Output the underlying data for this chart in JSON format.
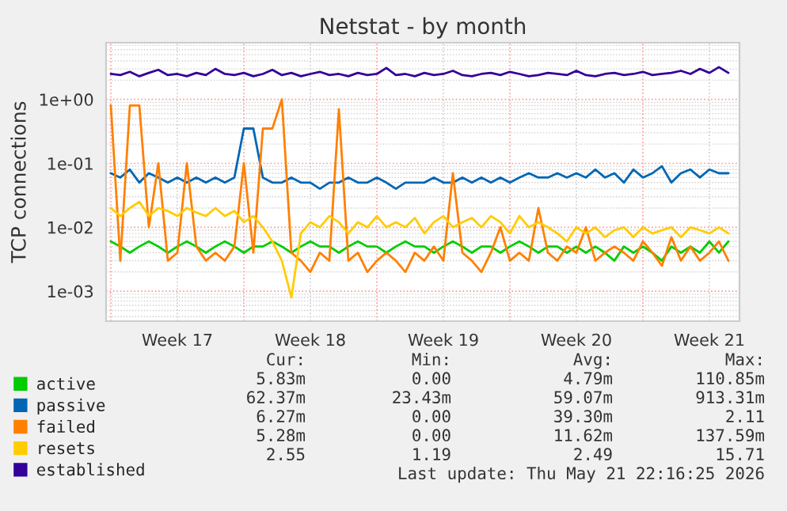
{
  "chart_data": {
    "type": "line",
    "title": "Netstat - by month",
    "ylabel": "TCP connections",
    "x": [
      "2026-04-20T00:00",
      "2026-04-20T12:00",
      "2026-04-21T00:00",
      "2026-04-21T12:00",
      "2026-04-22T00:00",
      "2026-04-22T12:00",
      "2026-04-23T00:00",
      "2026-04-23T12:00",
      "2026-04-24T00:00",
      "2026-04-24T12:00",
      "2026-04-25T00:00",
      "2026-04-25T12:00",
      "2026-04-26T00:00",
      "2026-04-26T12:00",
      "2026-04-27T00:00",
      "2026-04-27T12:00",
      "2026-04-28T00:00",
      "2026-04-28T12:00",
      "2026-04-29T00:00",
      "2026-04-29T12:00",
      "2026-04-30T00:00",
      "2026-04-30T12:00",
      "2026-05-01T00:00",
      "2026-05-01T12:00",
      "2026-05-02T00:00",
      "2026-05-02T12:00",
      "2026-05-03T00:00",
      "2026-05-03T12:00",
      "2026-05-04T00:00",
      "2026-05-04T12:00",
      "2026-05-05T00:00",
      "2026-05-05T12:00",
      "2026-05-06T00:00",
      "2026-05-06T12:00",
      "2026-05-07T00:00",
      "2026-05-07T12:00",
      "2026-05-08T00:00",
      "2026-05-08T12:00",
      "2026-05-09T00:00",
      "2026-05-09T12:00",
      "2026-05-10T00:00",
      "2026-05-10T12:00",
      "2026-05-11T00:00",
      "2026-05-11T12:00",
      "2026-05-12T00:00",
      "2026-05-12T12:00",
      "2026-05-13T00:00",
      "2026-05-13T12:00",
      "2026-05-14T00:00",
      "2026-05-14T12:00",
      "2026-05-15T00:00",
      "2026-05-15T12:00",
      "2026-05-16T00:00",
      "2026-05-16T12:00",
      "2026-05-17T00:00",
      "2026-05-17T12:00",
      "2026-05-18T00:00",
      "2026-05-18T12:00",
      "2026-05-19T00:00",
      "2026-05-19T12:00",
      "2026-05-20T00:00",
      "2026-05-20T12:00",
      "2026-05-21T00:00",
      "2026-05-21T12:00",
      "2026-05-22T00:00",
      "2026-05-22T12:00"
    ],
    "series": [
      {
        "name": "active",
        "color": "#00cc00",
        "values": [
          0.006,
          0.005,
          0.004,
          0.005,
          0.006,
          0.005,
          0.004,
          0.005,
          0.006,
          0.005,
          0.004,
          0.005,
          0.006,
          0.005,
          0.004,
          0.005,
          0.005,
          0.006,
          0.005,
          0.004,
          0.005,
          0.006,
          0.005,
          0.005,
          0.004,
          0.005,
          0.006,
          0.005,
          0.005,
          0.004,
          0.005,
          0.006,
          0.005,
          0.005,
          0.004,
          0.005,
          0.006,
          0.005,
          0.004,
          0.005,
          0.005,
          0.004,
          0.005,
          0.006,
          0.005,
          0.004,
          0.005,
          0.005,
          0.004,
          0.005,
          0.004,
          0.005,
          0.004,
          0.003,
          0.005,
          0.004,
          0.005,
          0.004,
          0.003,
          0.005,
          0.004,
          0.005,
          0.004,
          0.006,
          0.004,
          0.006
        ]
      },
      {
        "name": "passive",
        "color": "#0066b3",
        "values": [
          0.07,
          0.06,
          0.08,
          0.05,
          0.07,
          0.06,
          0.05,
          0.06,
          0.05,
          0.06,
          0.05,
          0.06,
          0.05,
          0.06,
          0.35,
          0.35,
          0.06,
          0.05,
          0.05,
          0.06,
          0.05,
          0.05,
          0.04,
          0.05,
          0.05,
          0.06,
          0.05,
          0.05,
          0.06,
          0.05,
          0.04,
          0.05,
          0.05,
          0.05,
          0.06,
          0.05,
          0.05,
          0.06,
          0.05,
          0.06,
          0.05,
          0.06,
          0.05,
          0.06,
          0.07,
          0.06,
          0.06,
          0.07,
          0.06,
          0.07,
          0.06,
          0.08,
          0.06,
          0.07,
          0.05,
          0.08,
          0.06,
          0.07,
          0.09,
          0.05,
          0.07,
          0.08,
          0.06,
          0.08,
          0.07,
          0.07
        ]
      },
      {
        "name": "failed",
        "color": "#ff8000",
        "values": [
          0.8,
          0.003,
          0.8,
          0.8,
          0.01,
          0.1,
          0.003,
          0.004,
          0.1,
          0.005,
          0.003,
          0.004,
          0.003,
          0.005,
          0.1,
          0.004,
          0.35,
          0.35,
          1.0,
          0.004,
          0.003,
          0.002,
          0.004,
          0.003,
          0.7,
          0.003,
          0.004,
          0.002,
          0.003,
          0.004,
          0.003,
          0.002,
          0.004,
          0.003,
          0.005,
          0.003,
          0.07,
          0.004,
          0.003,
          0.002,
          0.004,
          0.01,
          0.003,
          0.004,
          0.003,
          0.02,
          0.004,
          0.003,
          0.005,
          0.004,
          0.01,
          0.003,
          0.004,
          0.005,
          0.004,
          0.003,
          0.006,
          0.004,
          0.0025,
          0.007,
          0.003,
          0.005,
          0.003,
          0.004,
          0.006,
          0.003
        ]
      },
      {
        "name": "resets",
        "color": "#ffcc00",
        "values": [
          0.02,
          0.015,
          0.02,
          0.025,
          0.015,
          0.02,
          0.018,
          0.015,
          0.02,
          0.017,
          0.015,
          0.02,
          0.015,
          0.018,
          0.012,
          0.015,
          0.01,
          0.006,
          0.003,
          0.0008,
          0.008,
          0.012,
          0.01,
          0.015,
          0.012,
          0.008,
          0.012,
          0.01,
          0.015,
          0.01,
          0.012,
          0.01,
          0.014,
          0.008,
          0.012,
          0.015,
          0.01,
          0.012,
          0.014,
          0.01,
          0.015,
          0.012,
          0.008,
          0.015,
          0.01,
          0.012,
          0.01,
          0.008,
          0.006,
          0.01,
          0.008,
          0.01,
          0.007,
          0.009,
          0.01,
          0.007,
          0.01,
          0.008,
          0.009,
          0.01,
          0.007,
          0.01,
          0.009,
          0.008,
          0.01,
          0.008
        ]
      },
      {
        "name": "established",
        "color": "#330099",
        "values": [
          2.5,
          2.4,
          2.7,
          2.3,
          2.6,
          2.9,
          2.4,
          2.5,
          2.3,
          2.6,
          2.4,
          3.0,
          2.5,
          2.4,
          2.6,
          2.3,
          2.5,
          2.9,
          2.4,
          2.6,
          2.3,
          2.5,
          2.7,
          2.4,
          2.5,
          2.3,
          2.6,
          2.4,
          2.5,
          3.1,
          2.4,
          2.5,
          2.3,
          2.6,
          2.4,
          2.5,
          2.8,
          2.4,
          2.3,
          2.5,
          2.6,
          2.4,
          2.7,
          2.5,
          2.3,
          2.4,
          2.6,
          2.5,
          2.4,
          2.8,
          2.4,
          2.3,
          2.5,
          2.6,
          2.4,
          2.5,
          2.7,
          2.4,
          2.5,
          2.6,
          2.8,
          2.5,
          3.0,
          2.6,
          3.2,
          2.6
        ]
      }
    ],
    "log": "y",
    "ylim": [
      0.00034,
      7.7
    ],
    "yticks": [
      {
        "value": 0.001,
        "label": "1e-03"
      },
      {
        "value": 0.01,
        "label": "1e-02"
      },
      {
        "value": 0.1,
        "label": "1e-01"
      },
      {
        "value": 1,
        "label": "1e+00"
      }
    ],
    "xlim": [
      "2026-04-19T18:00",
      "2026-05-23T02:00"
    ],
    "xticks": [
      {
        "value": "2026-04-20",
        "label": null
      },
      {
        "value": "2026-04-23T12:00",
        "label": "Week 17"
      },
      {
        "value": "2026-04-27",
        "label": null
      },
      {
        "value": "2026-04-30T12:00",
        "label": "Week 18"
      },
      {
        "value": "2026-05-04",
        "label": null
      },
      {
        "value": "2026-05-07T12:00",
        "label": "Week 19"
      },
      {
        "value": "2026-05-11",
        "label": null
      },
      {
        "value": "2026-05-14T12:00",
        "label": "Week 20"
      },
      {
        "value": "2026-05-18",
        "label": null
      },
      {
        "value": "2026-05-21T12:00",
        "label": "Week 21"
      }
    ],
    "grid": true,
    "legend": "bottom",
    "annotations": [
      "Cur:",
      "Min:",
      "Avg:",
      "Max:",
      "5.83m",
      "0.00",
      "4.79m",
      "110.85m",
      "62.37m",
      "23.43m",
      "59.07m",
      "913.31m",
      "6.27m",
      "0.00",
      "39.30m",
      "2.11",
      "5.28m",
      "0.00",
      "11.62m",
      "137.59m",
      "2.55",
      "1.19",
      "2.49",
      "15.71",
      "Last update: Thu May 21 22:16:25 2026"
    ]
  }
}
